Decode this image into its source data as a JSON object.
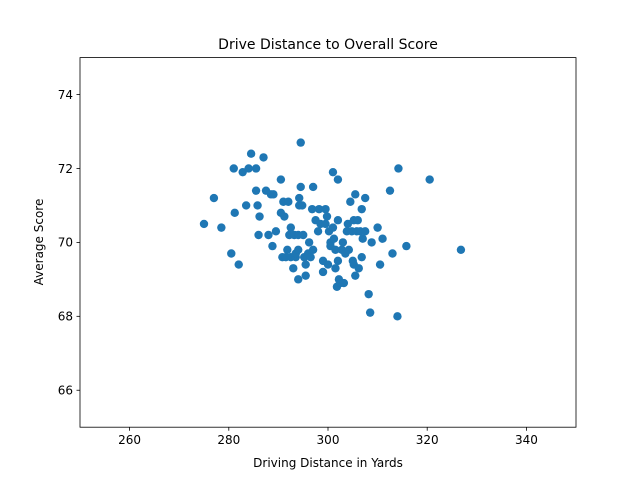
{
  "chart_data": {
    "type": "scatter",
    "title": "Drive Distance to Overall Score",
    "xlabel": "Driving Distance in Yards",
    "ylabel": "Average Score",
    "xlim": [
      250,
      350
    ],
    "ylim": [
      65,
      75
    ],
    "xticks": [
      260,
      280,
      300,
      320,
      340
    ],
    "yticks": [
      66,
      68,
      70,
      72,
      74
    ],
    "xtick_labels": [
      "260",
      "280",
      "300",
      "320",
      "340"
    ],
    "ytick_labels": [
      "66",
      "68",
      "70",
      "72",
      "74"
    ],
    "grid": false,
    "marker_color": "#1f77b4",
    "points": [
      [
        275.0,
        70.5
      ],
      [
        277.0,
        71.2
      ],
      [
        278.5,
        70.4
      ],
      [
        280.5,
        69.7
      ],
      [
        281.0,
        72.0
      ],
      [
        281.2,
        70.8
      ],
      [
        282.0,
        69.4
      ],
      [
        282.8,
        71.9
      ],
      [
        283.5,
        71.0
      ],
      [
        284.0,
        72.0
      ],
      [
        284.5,
        72.4
      ],
      [
        285.5,
        72.0
      ],
      [
        285.5,
        71.4
      ],
      [
        285.8,
        71.0
      ],
      [
        286.0,
        70.2
      ],
      [
        286.2,
        70.7
      ],
      [
        287.0,
        72.3
      ],
      [
        287.5,
        71.4
      ],
      [
        288.0,
        70.2
      ],
      [
        288.5,
        71.3
      ],
      [
        288.8,
        69.9
      ],
      [
        289.0,
        71.3
      ],
      [
        289.5,
        70.3
      ],
      [
        290.5,
        71.7
      ],
      [
        290.5,
        70.8
      ],
      [
        290.8,
        69.6
      ],
      [
        291.0,
        71.1
      ],
      [
        291.2,
        70.7
      ],
      [
        291.5,
        69.6
      ],
      [
        291.8,
        69.8
      ],
      [
        292.0,
        71.1
      ],
      [
        292.2,
        70.2
      ],
      [
        292.5,
        70.4
      ],
      [
        292.5,
        69.6
      ],
      [
        293.0,
        69.3
      ],
      [
        293.2,
        70.2
      ],
      [
        293.5,
        69.6
      ],
      [
        293.5,
        69.7
      ],
      [
        294.0,
        70.2
      ],
      [
        294.0,
        69.8
      ],
      [
        294.0,
        69.0
      ],
      [
        294.2,
        71.2
      ],
      [
        294.2,
        71.0
      ],
      [
        294.5,
        72.7
      ],
      [
        294.5,
        71.5
      ],
      [
        294.8,
        71.0
      ],
      [
        295.0,
        70.2
      ],
      [
        295.2,
        69.6
      ],
      [
        295.5,
        69.1
      ],
      [
        295.5,
        69.4
      ],
      [
        296.0,
        69.7
      ],
      [
        296.2,
        70.0
      ],
      [
        296.5,
        69.6
      ],
      [
        296.8,
        70.9
      ],
      [
        297.0,
        71.5
      ],
      [
        297.0,
        69.8
      ],
      [
        297.5,
        70.6
      ],
      [
        298.0,
        70.3
      ],
      [
        298.2,
        70.9
      ],
      [
        298.5,
        70.5
      ],
      [
        299.0,
        69.2
      ],
      [
        299.0,
        69.5
      ],
      [
        299.5,
        70.9
      ],
      [
        299.5,
        70.5
      ],
      [
        299.8,
        70.7
      ],
      [
        300.0,
        69.4
      ],
      [
        300.2,
        70.3
      ],
      [
        300.5,
        70.0
      ],
      [
        300.5,
        69.9
      ],
      [
        301.0,
        71.9
      ],
      [
        301.0,
        70.4
      ],
      [
        301.2,
        70.1
      ],
      [
        301.5,
        69.8
      ],
      [
        301.5,
        69.3
      ],
      [
        301.8,
        68.8
      ],
      [
        302.0,
        71.7
      ],
      [
        302.0,
        70.6
      ],
      [
        302.0,
        69.5
      ],
      [
        302.2,
        69.0
      ],
      [
        302.5,
        68.9
      ],
      [
        302.8,
        69.8
      ],
      [
        303.0,
        70.0
      ],
      [
        303.2,
        68.9
      ],
      [
        303.5,
        69.7
      ],
      [
        303.8,
        70.3
      ],
      [
        304.0,
        70.5
      ],
      [
        304.2,
        69.8
      ],
      [
        304.5,
        71.1
      ],
      [
        304.8,
        70.3
      ],
      [
        305.0,
        69.5
      ],
      [
        305.2,
        69.4
      ],
      [
        305.2,
        70.6
      ],
      [
        305.5,
        71.3
      ],
      [
        305.5,
        69.1
      ],
      [
        305.8,
        70.3
      ],
      [
        306.0,
        70.6
      ],
      [
        306.2,
        69.3
      ],
      [
        306.5,
        70.3
      ],
      [
        306.8,
        69.6
      ],
      [
        306.8,
        70.9
      ],
      [
        307.0,
        70.1
      ],
      [
        307.5,
        71.2
      ],
      [
        307.5,
        70.3
      ],
      [
        308.2,
        68.6
      ],
      [
        308.5,
        68.1
      ],
      [
        308.8,
        70.0
      ],
      [
        310.0,
        70.4
      ],
      [
        310.5,
        69.4
      ],
      [
        311.0,
        70.1
      ],
      [
        312.5,
        71.4
      ],
      [
        313.0,
        69.7
      ],
      [
        314.0,
        68.0
      ],
      [
        314.2,
        72.0
      ],
      [
        315.8,
        69.9
      ],
      [
        320.5,
        71.7
      ],
      [
        326.8,
        69.8
      ]
    ]
  }
}
